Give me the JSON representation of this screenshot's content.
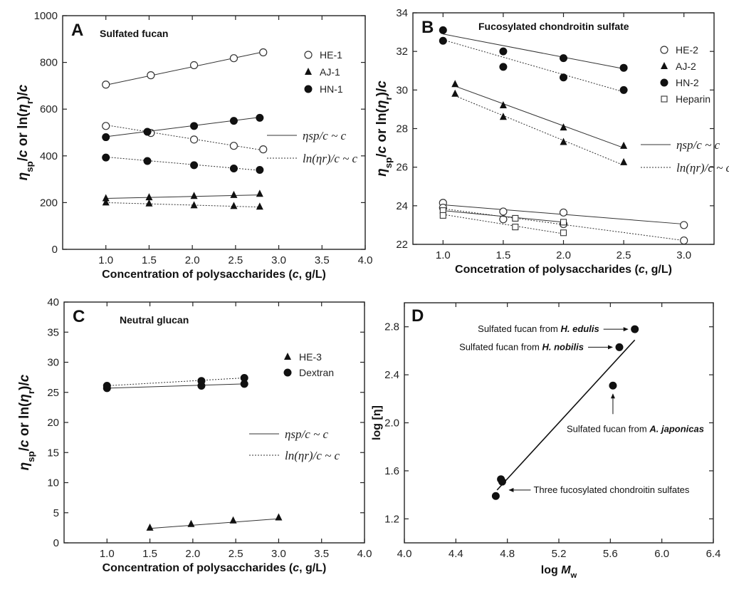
{
  "chart_data": [
    {
      "id": "A",
      "type": "scatter",
      "letter": "A",
      "title": "Sulfated fucan",
      "xlabel": "Concentration of polysaccharides (c, g/L)",
      "ylabel": "ηsp/c or ln(ηr)/c",
      "xlim": [
        0.5,
        4.0
      ],
      "ylim": [
        0,
        1000
      ],
      "xticks": [
        "1.0",
        "1.5",
        "2.0",
        "2.5",
        "3.0",
        "3.5",
        "4.0"
      ],
      "yticks": [
        "0",
        "200",
        "400",
        "600",
        "800",
        "1000"
      ],
      "legend": {
        "position": "top-right",
        "entries": [
          {
            "label": "HE-1",
            "marker": "circle-open"
          },
          {
            "label": "AJ-1",
            "marker": "triangle"
          },
          {
            "label": "HN-1",
            "marker": "circle"
          }
        ]
      },
      "line_legend": [
        {
          "label": "ηsp/c ~ c",
          "style": "solid"
        },
        {
          "label": "ln(ηr)/c ~ c",
          "style": "dotted"
        }
      ],
      "series": [
        {
          "name": "HE-1 ηsp/c",
          "marker": "circle-open",
          "line": "solid",
          "x": [
            1.0,
            1.52,
            2.02,
            2.48,
            2.82
          ],
          "y": [
            705,
            745,
            788,
            818,
            843
          ],
          "fit": [
            [
              1.0,
              703
            ],
            [
              2.82,
              845
            ]
          ]
        },
        {
          "name": "HE-1 ln(ηr)/c",
          "marker": "circle-open",
          "line": "dotted",
          "x": [
            1.0,
            1.52,
            2.02,
            2.48,
            2.82
          ],
          "y": [
            528,
            498,
            470,
            443,
            428
          ],
          "fit": [
            [
              1.0,
              532
            ],
            [
              2.82,
              424
            ]
          ]
        },
        {
          "name": "HN-1 ηsp/c",
          "marker": "circle",
          "line": "solid",
          "x": [
            1.0,
            1.48,
            2.02,
            2.48,
            2.78
          ],
          "y": [
            480,
            503,
            528,
            550,
            563
          ],
          "fit": [
            [
              1.0,
              482
            ],
            [
              2.78,
              565
            ]
          ]
        },
        {
          "name": "HN-1 ln(ηr)/c",
          "marker": "circle",
          "line": "dotted",
          "x": [
            1.0,
            1.48,
            2.02,
            2.48,
            2.78
          ],
          "y": [
            393,
            378,
            360,
            346,
            340
          ],
          "fit": [
            [
              1.0,
              395
            ],
            [
              2.78,
              338
            ]
          ]
        },
        {
          "name": "AJ-1 ηsp/c",
          "marker": "triangle",
          "line": "solid",
          "x": [
            1.0,
            1.5,
            2.02,
            2.48,
            2.78
          ],
          "y": [
            218,
            222,
            228,
            232,
            237
          ],
          "fit": [
            [
              1.0,
              218
            ],
            [
              2.78,
              233
            ]
          ]
        },
        {
          "name": "AJ-1 ln(ηr)/c",
          "marker": "triangle",
          "line": "dotted",
          "x": [
            1.0,
            1.5,
            2.02,
            2.48,
            2.78
          ],
          "y": [
            200,
            196,
            188,
            185,
            182
          ],
          "fit": [
            [
              1.0,
              200
            ],
            [
              2.78,
              181
            ]
          ]
        }
      ]
    },
    {
      "id": "B",
      "type": "scatter",
      "letter": "B",
      "title": "Fucosylated chondroitin sulfate",
      "xlabel": "Concetration of polysaccharides (c, g/L)",
      "ylabel": "ηsp/c or ln(ηr)/c",
      "xlim": [
        0.75,
        3.25
      ],
      "ylim": [
        22,
        34
      ],
      "xticks": [
        "1.0",
        "1.5",
        "2.0",
        "2.5",
        "3.0"
      ],
      "yticks": [
        "22",
        "24",
        "26",
        "28",
        "30",
        "32",
        "34"
      ],
      "legend": {
        "position": "top-right",
        "entries": [
          {
            "label": "HE-2",
            "marker": "circle-open"
          },
          {
            "label": "AJ-2",
            "marker": "triangle"
          },
          {
            "label": "HN-2",
            "marker": "circle"
          },
          {
            "label": "Heparin",
            "marker": "square-open"
          }
        ]
      },
      "line_legend": [
        {
          "label": "ηsp/c ~ c",
          "style": "solid"
        },
        {
          "label": "ln(ηr)/c ~ c",
          "style": "dotted"
        }
      ],
      "series": [
        {
          "name": "HN-2 ηsp/c",
          "marker": "circle",
          "line": "solid",
          "x": [
            1.0,
            1.5,
            2.0,
            2.5
          ],
          "y": [
            33.1,
            32.0,
            31.65,
            31.15
          ],
          "fit": [
            [
              1.0,
              32.9
            ],
            [
              2.5,
              31.1
            ]
          ]
        },
        {
          "name": "HN-2 ln(ηr)/c",
          "marker": "circle",
          "line": "dotted",
          "x": [
            1.0,
            1.5,
            2.0,
            2.5
          ],
          "y": [
            32.55,
            31.2,
            30.65,
            30.0
          ],
          "fit": [
            [
              1.0,
              32.6
            ],
            [
              2.5,
              29.9
            ]
          ]
        },
        {
          "name": "AJ-2 ηsp/c",
          "marker": "triangle",
          "line": "solid",
          "x": [
            1.1,
            1.5,
            2.0,
            2.5
          ],
          "y": [
            30.3,
            29.2,
            28.05,
            27.1
          ],
          "fit": [
            [
              1.1,
              30.2
            ],
            [
              2.5,
              27.0
            ]
          ]
        },
        {
          "name": "AJ-2 ln(ηr)/c",
          "marker": "triangle",
          "line": "dotted",
          "x": [
            1.1,
            1.5,
            2.0,
            2.5
          ],
          "y": [
            29.8,
            28.6,
            27.3,
            26.25
          ],
          "fit": [
            [
              1.1,
              29.7
            ],
            [
              2.5,
              26.1
            ]
          ]
        },
        {
          "name": "HE-2 ηsp/c",
          "marker": "circle-open",
          "line": "solid",
          "x": [
            1.0,
            1.5,
            2.0,
            3.0
          ],
          "y": [
            24.15,
            23.7,
            23.65,
            23.0
          ],
          "fit": [
            [
              1.0,
              24.05
            ],
            [
              3.0,
              23.05
            ]
          ]
        },
        {
          "name": "HE-2 ln(ηr)/c",
          "marker": "circle-open",
          "line": "dotted",
          "x": [
            1.0,
            1.5,
            2.0,
            3.0
          ],
          "y": [
            23.9,
            23.3,
            23.05,
            22.2
          ],
          "fit": [
            [
              1.0,
              23.85
            ],
            [
              3.0,
              22.2
            ]
          ]
        },
        {
          "name": "Heparin ηsp/c",
          "marker": "square-open",
          "line": "solid",
          "x": [
            1.0,
            1.6,
            2.0
          ],
          "y": [
            23.75,
            23.35,
            23.15
          ],
          "fit": [
            [
              1.0,
              23.75
            ],
            [
              2.0,
              23.15
            ]
          ]
        },
        {
          "name": "Heparin ln(ηr)/c",
          "marker": "square-open",
          "line": "dotted",
          "x": [
            1.0,
            1.6,
            2.0
          ],
          "y": [
            23.5,
            22.9,
            22.6
          ],
          "fit": [
            [
              1.0,
              23.55
            ],
            [
              2.0,
              22.55
            ]
          ]
        }
      ]
    },
    {
      "id": "C",
      "type": "scatter",
      "letter": "C",
      "title": "Neutral glucan",
      "xlabel": "Concentration of polysaccharides (c, g/L)",
      "ylabel": "ηsp/c or ln(ηr)/c",
      "xlim": [
        0.5,
        4.0
      ],
      "ylim": [
        0,
        40
      ],
      "xticks": [
        "1.0",
        "1.5",
        "2.0",
        "2.5",
        "3.0",
        "3.5",
        "4.0"
      ],
      "yticks": [
        "0",
        "5",
        "10",
        "15",
        "20",
        "25",
        "30",
        "35",
        "40"
      ],
      "legend": {
        "position": "top-right",
        "entries": [
          {
            "label": "HE-3",
            "marker": "triangle"
          },
          {
            "label": "Dextran",
            "marker": "circle"
          }
        ]
      },
      "line_legend": [
        {
          "label": "ηsp/c ~ c",
          "style": "solid"
        },
        {
          "label": "ln(ηr)/c ~ c",
          "style": "dotted"
        }
      ],
      "series": [
        {
          "name": "Dextran ηsp/c",
          "marker": "circle",
          "line": "solid",
          "x": [
            1.0,
            2.1,
            2.6
          ],
          "y": [
            25.7,
            26.1,
            26.4
          ],
          "fit": [
            [
              1.0,
              25.7
            ],
            [
              2.6,
              26.4
            ]
          ]
        },
        {
          "name": "Dextran ln(ηr)/c",
          "marker": "circle",
          "line": "dotted",
          "x": [
            1.0,
            2.1,
            2.6
          ],
          "y": [
            26.1,
            26.9,
            27.4
          ],
          "fit": [
            [
              1.0,
              26.1
            ],
            [
              2.6,
              27.4
            ]
          ]
        },
        {
          "name": "HE-3 ηsp/c",
          "marker": "triangle",
          "line": "solid",
          "x": [
            1.5,
            1.98,
            2.47,
            3.0
          ],
          "y": [
            2.5,
            3.1,
            3.7,
            4.2
          ],
          "fit": [
            [
              1.5,
              2.4
            ],
            [
              3.0,
              4.0
            ]
          ]
        }
      ]
    },
    {
      "id": "D",
      "type": "scatter",
      "letter": "D",
      "title": "",
      "xlabel": "log Mw",
      "ylabel": "log [η]",
      "xlim": [
        4.0,
        6.4
      ],
      "ylim": [
        1.0,
        3.0
      ],
      "xticks": [
        "4.0",
        "4.4",
        "4.8",
        "5.2",
        "5.6",
        "6.0",
        "6.4"
      ],
      "yticks": [
        "1.2",
        "1.6",
        "2.0",
        "2.4",
        "2.8"
      ],
      "series": [
        {
          "name": "data",
          "marker": "circle",
          "line": "none",
          "x": [
            4.71,
            4.75,
            4.76,
            5.62,
            5.67,
            5.79
          ],
          "y": [
            1.39,
            1.53,
            1.51,
            2.31,
            2.63,
            2.78
          ],
          "fit": [
            [
              4.72,
              1.44
            ],
            [
              5.79,
              2.69
            ]
          ]
        }
      ],
      "annotations": [
        {
          "text_pre": "Sulfated fucan from ",
          "text_em": "H. edulis",
          "arrow": "right",
          "target": [
            5.79,
            2.78
          ]
        },
        {
          "text_pre": "Sulfated fucan from ",
          "text_em": "H. nobilis",
          "arrow": "right",
          "target": [
            5.67,
            2.63
          ]
        },
        {
          "text_pre": "Sulfated fucan from ",
          "text_em": "A. japonicas",
          "arrow": "up",
          "target": [
            5.62,
            2.31
          ]
        },
        {
          "text_pre": "Three fucosylated chondroitin sulfates",
          "text_em": "",
          "arrow": "left",
          "target": [
            4.76,
            1.44
          ]
        }
      ]
    }
  ]
}
